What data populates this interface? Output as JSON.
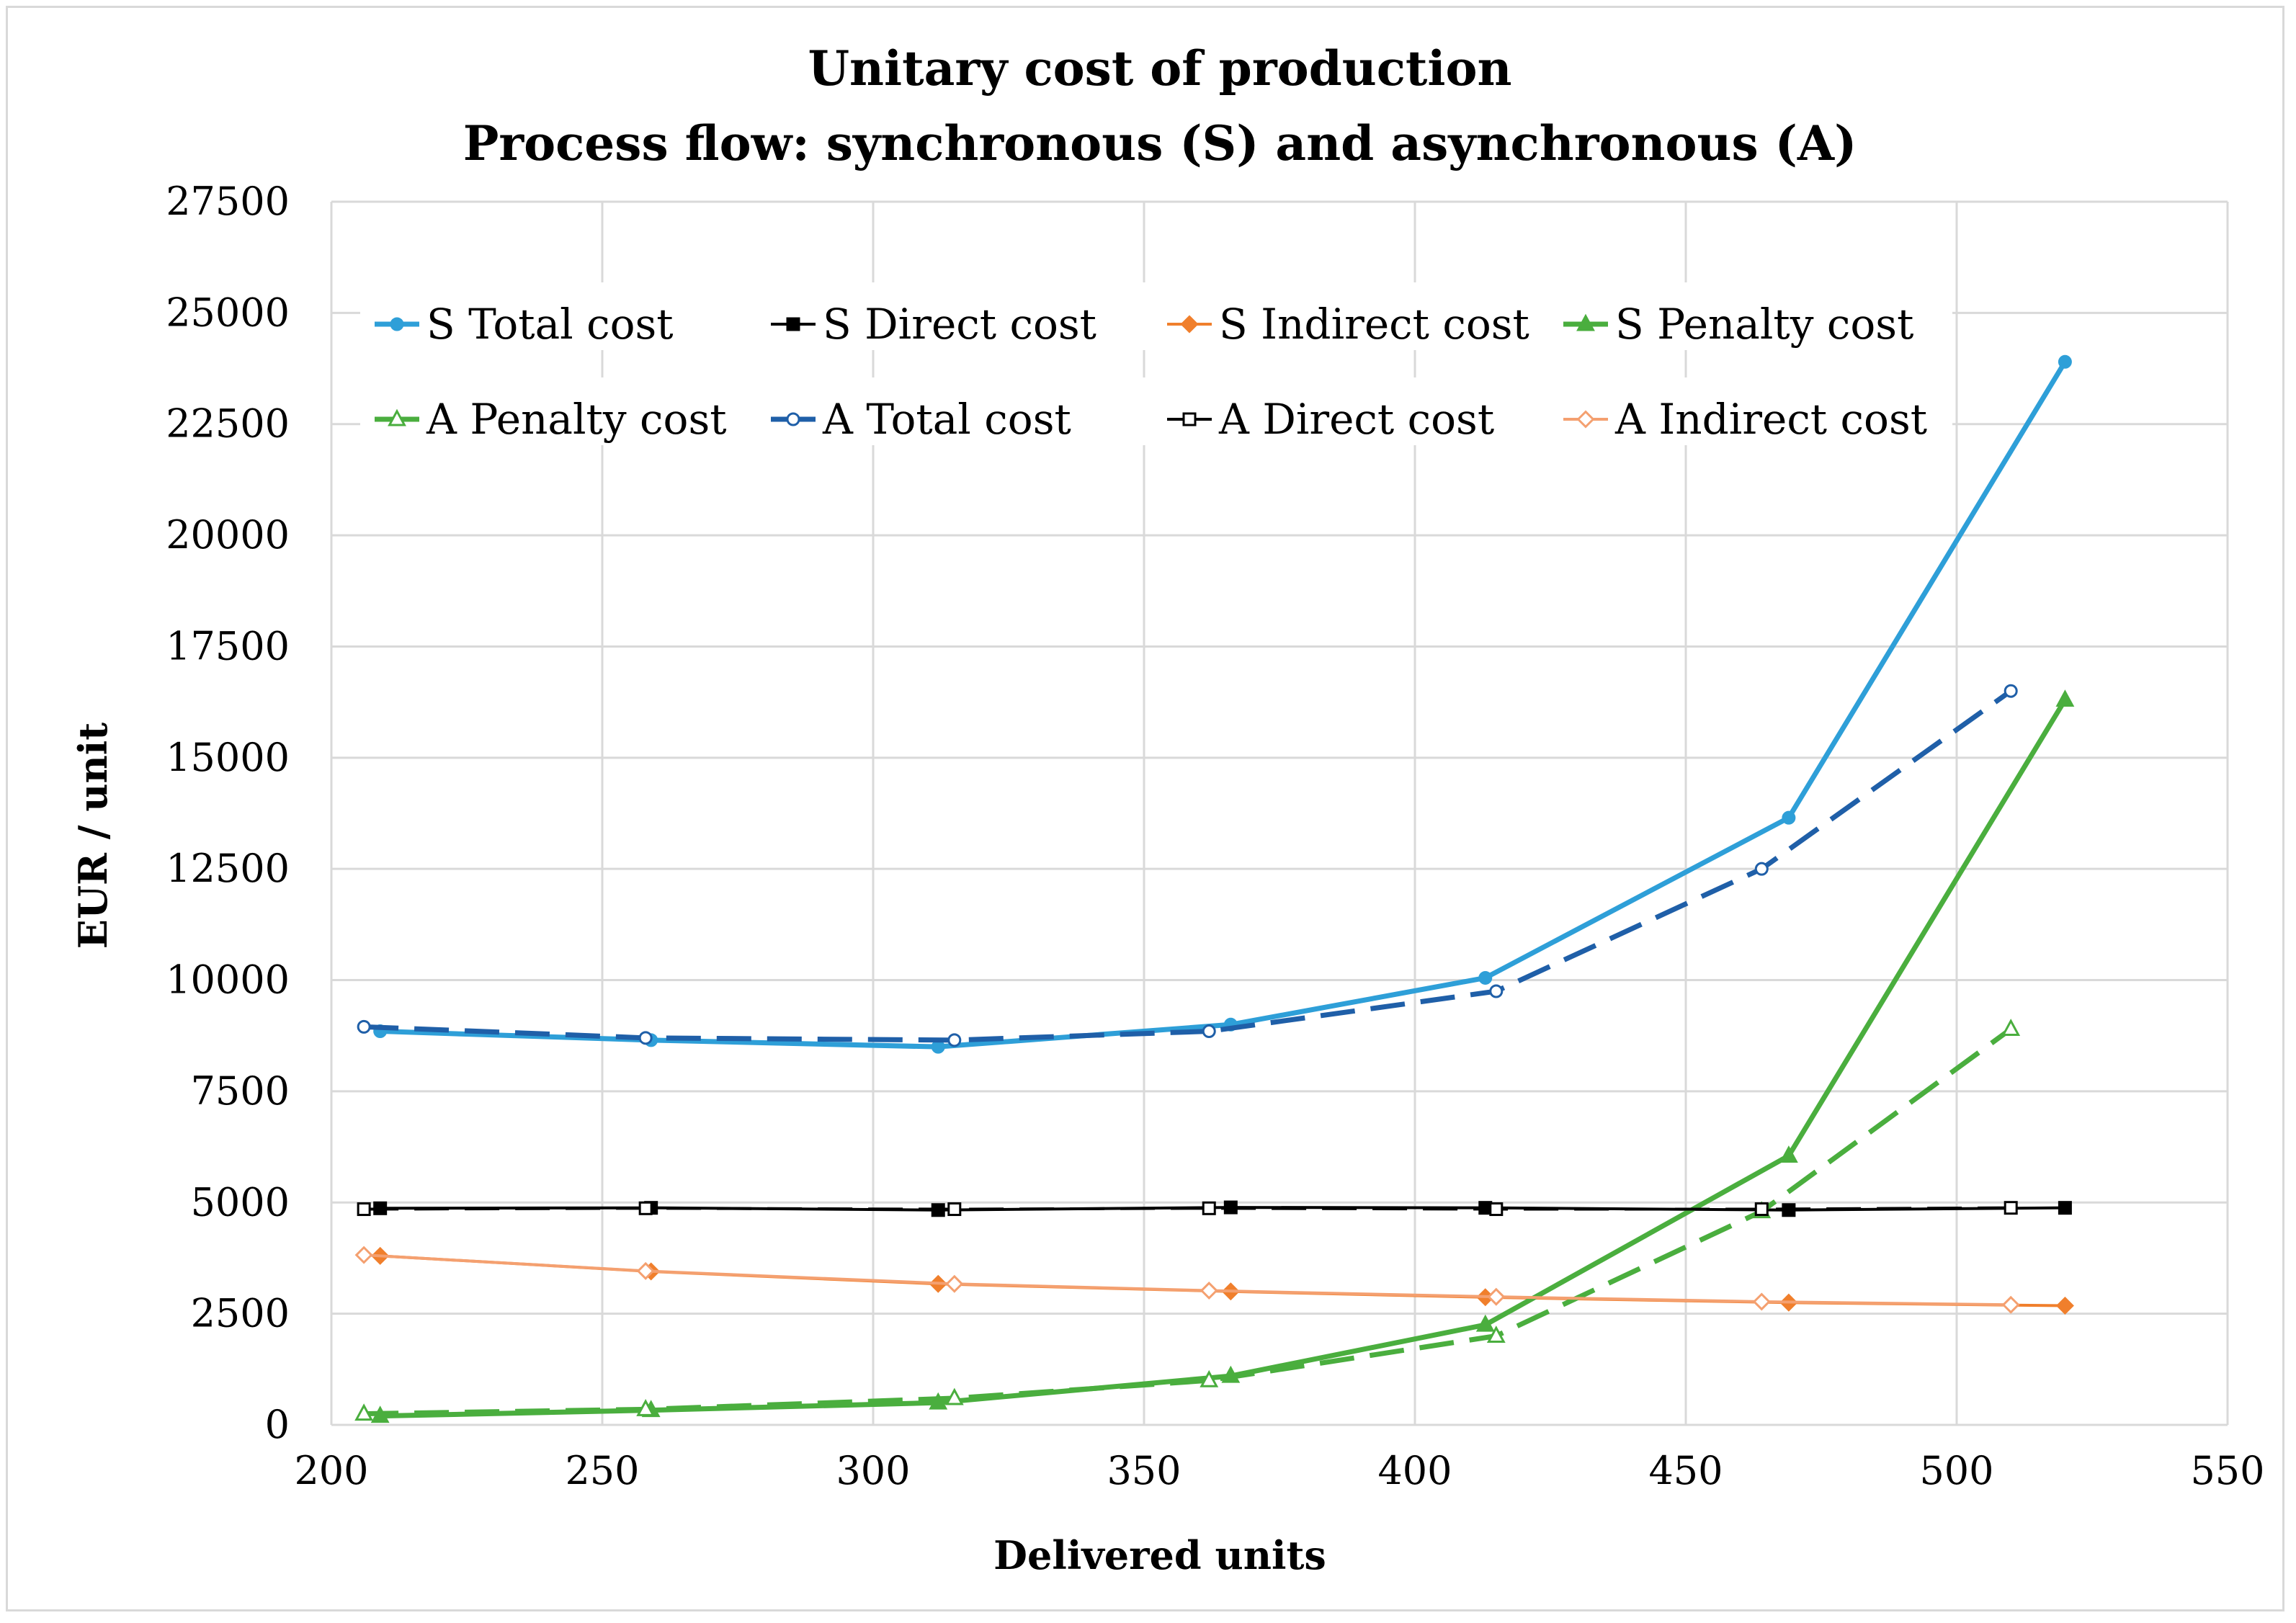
{
  "chart_data": {
    "type": "line",
    "title": "Unitary cost of production",
    "subtitle": "Process flow: synchronous (S) and asynchronous (A)",
    "xlabel": "Delivered units",
    "ylabel": "EUR / unit",
    "xlim": [
      200,
      550
    ],
    "ylim": [
      0,
      27500
    ],
    "x_ticks": [
      200,
      250,
      300,
      350,
      400,
      450,
      500,
      550
    ],
    "y_ticks": [
      0,
      2500,
      5000,
      7500,
      10000,
      12500,
      15000,
      17500,
      20000,
      22500,
      25000,
      27500
    ],
    "grid": true,
    "legend_position": "top, inside plot area, two rows",
    "colors": {
      "s_total": "#2e9fd8",
      "a_total": "#1f5fa8",
      "direct": "#000000",
      "indirect": "#f07f2c",
      "a_indirect": "#f4a070",
      "penalty": "#4aae3e",
      "grid": "#d9d9d9",
      "border": "#d9d9d9"
    },
    "series": [
      {
        "name": "S Total cost",
        "style": "solid",
        "marker": "filled-circle",
        "color": "#2e9fd8",
        "x": [
          209,
          259,
          312,
          366,
          413,
          469,
          520
        ],
        "y": [
          8850,
          8650,
          8500,
          9000,
          10050,
          13650,
          23900
        ]
      },
      {
        "name": "S Direct cost",
        "style": "solid",
        "marker": "filled-square",
        "color": "#000000",
        "x": [
          209,
          259,
          312,
          366,
          413,
          469,
          520
        ],
        "y": [
          4870,
          4880,
          4830,
          4890,
          4880,
          4830,
          4880
        ]
      },
      {
        "name": "S Indirect cost",
        "style": "solid",
        "marker": "filled-diamond",
        "color": "#f07f2c",
        "x": [
          209,
          259,
          312,
          366,
          413,
          469,
          520
        ],
        "y": [
          3800,
          3450,
          3170,
          3000,
          2870,
          2750,
          2680
        ]
      },
      {
        "name": "S Penalty cost",
        "style": "solid",
        "marker": "filled-triangle",
        "color": "#4aae3e",
        "x": [
          209,
          259,
          312,
          366,
          413,
          469,
          520
        ],
        "y": [
          200,
          330,
          500,
          1100,
          2250,
          6050,
          16300
        ]
      },
      {
        "name": "A Penalty cost",
        "style": "dashed",
        "marker": "open-triangle",
        "color": "#4aae3e",
        "x": [
          206,
          258,
          315,
          362,
          415,
          464,
          510
        ],
        "y": [
          250,
          350,
          600,
          1000,
          2000,
          4800,
          8900
        ]
      },
      {
        "name": "A Total cost",
        "style": "dashed",
        "marker": "open-circle",
        "color": "#1f5fa8",
        "x": [
          206,
          258,
          315,
          362,
          415,
          464,
          510
        ],
        "y": [
          8950,
          8700,
          8650,
          8850,
          9750,
          12500,
          16500
        ]
      },
      {
        "name": "A Direct cost",
        "style": "dashed",
        "marker": "open-square",
        "color": "#000000",
        "x": [
          206,
          258,
          315,
          362,
          415,
          464,
          510
        ],
        "y": [
          4850,
          4870,
          4850,
          4870,
          4850,
          4850,
          4880
        ]
      },
      {
        "name": "A Indirect cost",
        "style": "solid",
        "marker": "open-diamond",
        "color": "#f4a070",
        "x": [
          206,
          258,
          315,
          362,
          415,
          464,
          510
        ],
        "y": [
          3820,
          3460,
          3170,
          3020,
          2880,
          2770,
          2700
        ]
      }
    ]
  }
}
